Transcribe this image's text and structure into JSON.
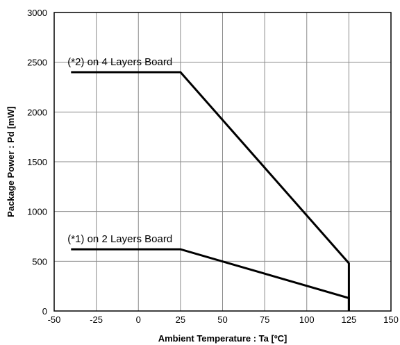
{
  "chart_data": {
    "type": "line",
    "xlabel": "Ambient Temperature : Ta [ºC]",
    "ylabel": "Package Power : Pd [mW]",
    "xlim": [
      -50,
      150
    ],
    "ylim": [
      0,
      3000
    ],
    "x_ticks": [
      "-50",
      "-25",
      "0",
      "25",
      "50",
      "75",
      "100",
      "125",
      "150"
    ],
    "y_ticks": [
      "0",
      "500",
      "1000",
      "1500",
      "2000",
      "2500",
      "3000"
    ],
    "grid": true,
    "series": [
      {
        "name": "(*2) on 4 Layers Board",
        "points": [
          [
            -40,
            2400
          ],
          [
            25,
            2400
          ],
          [
            125,
            480
          ],
          [
            125,
            0
          ]
        ]
      },
      {
        "name": "(*1) on 2 Layers Board",
        "points": [
          [
            -40,
            620
          ],
          [
            25,
            620
          ],
          [
            125,
            130
          ],
          [
            125,
            0
          ]
        ]
      }
    ],
    "annotations": [
      {
        "text": "(*2) on 4 Layers Board",
        "x": -40,
        "y": 2400
      },
      {
        "text": "(*1) on 2 Layers Board",
        "x": -40,
        "y": 620
      }
    ]
  }
}
